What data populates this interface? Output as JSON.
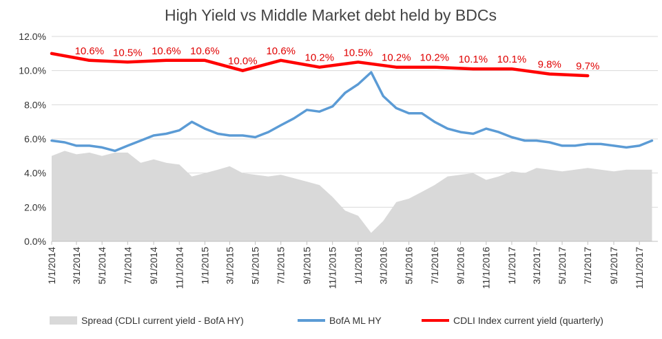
{
  "chart_data": {
    "type": "line",
    "title": "High Yield  vs  Middle Market debt held by BDCs",
    "ylim": [
      0,
      12
    ],
    "yticks": [
      "0.0%",
      "2.0%",
      "4.0%",
      "6.0%",
      "8.0%",
      "10.0%",
      "12.0%"
    ],
    "ytick_values": [
      0,
      2,
      4,
      6,
      8,
      10,
      12
    ],
    "xlim": [
      "2014-01-01",
      "2017-12-15"
    ],
    "xticks": [
      "1/1/2014",
      "3/1/2014",
      "5/1/2014",
      "7/1/2014",
      "9/1/2014",
      "11/1/2014",
      "1/1/2015",
      "3/1/2015",
      "5/1/2015",
      "7/1/2015",
      "9/1/2015",
      "11/1/2015",
      "1/1/2016",
      "3/1/2016",
      "5/1/2016",
      "7/1/2016",
      "9/1/2016",
      "11/1/2016",
      "1/1/2017",
      "3/1/2017",
      "5/1/2017",
      "7/1/2017",
      "9/1/2017",
      "11/1/2017"
    ],
    "grid": "horizontal",
    "legend_position": "bottom",
    "series": [
      {
        "name": "Spread (CDLI current yield - BofA HY)",
        "kind": "area",
        "color": "#d9d9d9",
        "x": [
          "2014-01-01",
          "2014-02-01",
          "2014-03-01",
          "2014-04-01",
          "2014-05-01",
          "2014-06-01",
          "2014-07-01",
          "2014-08-01",
          "2014-09-01",
          "2014-10-01",
          "2014-11-01",
          "2014-12-01",
          "2015-01-01",
          "2015-02-01",
          "2015-03-01",
          "2015-04-01",
          "2015-05-01",
          "2015-06-01",
          "2015-07-01",
          "2015-08-01",
          "2015-09-01",
          "2015-10-01",
          "2015-11-01",
          "2015-12-01",
          "2016-01-01",
          "2016-02-01",
          "2016-03-01",
          "2016-04-01",
          "2016-05-01",
          "2016-06-01",
          "2016-07-01",
          "2016-08-01",
          "2016-09-01",
          "2016-10-01",
          "2016-11-01",
          "2016-12-01",
          "2017-01-01",
          "2017-02-01",
          "2017-03-01",
          "2017-04-01",
          "2017-05-01",
          "2017-06-01",
          "2017-07-01",
          "2017-08-01",
          "2017-09-01",
          "2017-10-01",
          "2017-11-01",
          "2017-12-01"
        ],
        "values": [
          5.0,
          5.3,
          5.1,
          5.2,
          5.0,
          5.2,
          5.2,
          4.6,
          4.8,
          4.6,
          4.5,
          3.8,
          4.0,
          4.2,
          4.4,
          4.0,
          3.9,
          3.8,
          3.9,
          3.7,
          3.5,
          3.3,
          2.6,
          1.8,
          1.5,
          0.5,
          1.2,
          2.3,
          2.5,
          2.9,
          3.3,
          3.8,
          3.9,
          4.0,
          3.6,
          3.8,
          4.1,
          4.0,
          4.3,
          4.2,
          4.1,
          4.2,
          4.3,
          4.2,
          4.1,
          4.2,
          4.2,
          4.2
        ]
      },
      {
        "name": "BofA ML HY",
        "kind": "line",
        "color": "#5b9bd5",
        "x": [
          "2014-01-01",
          "2014-02-01",
          "2014-03-01",
          "2014-04-01",
          "2014-05-01",
          "2014-06-01",
          "2014-07-01",
          "2014-08-01",
          "2014-09-01",
          "2014-10-01",
          "2014-11-01",
          "2014-12-01",
          "2015-01-01",
          "2015-02-01",
          "2015-03-01",
          "2015-04-01",
          "2015-05-01",
          "2015-06-01",
          "2015-07-01",
          "2015-08-01",
          "2015-09-01",
          "2015-10-01",
          "2015-11-01",
          "2015-12-01",
          "2016-01-01",
          "2016-02-01",
          "2016-03-01",
          "2016-04-01",
          "2016-05-01",
          "2016-06-01",
          "2016-07-01",
          "2016-08-01",
          "2016-09-01",
          "2016-10-01",
          "2016-11-01",
          "2016-12-01",
          "2017-01-01",
          "2017-02-01",
          "2017-03-01",
          "2017-04-01",
          "2017-05-01",
          "2017-06-01",
          "2017-07-01",
          "2017-08-01",
          "2017-09-01",
          "2017-10-01",
          "2017-11-01",
          "2017-12-01"
        ],
        "values": [
          5.9,
          5.8,
          5.6,
          5.6,
          5.5,
          5.3,
          5.6,
          5.9,
          6.2,
          6.3,
          6.5,
          7.0,
          6.6,
          6.3,
          6.2,
          6.2,
          6.1,
          6.4,
          6.8,
          7.2,
          7.7,
          7.6,
          7.9,
          8.7,
          9.2,
          9.9,
          8.5,
          7.8,
          7.5,
          7.5,
          7.0,
          6.6,
          6.4,
          6.3,
          6.6,
          6.4,
          6.1,
          5.9,
          5.9,
          5.8,
          5.6,
          5.6,
          5.7,
          5.7,
          5.6,
          5.5,
          5.6,
          5.9
        ]
      },
      {
        "name": "CDLI Index current yield (quarterly)",
        "kind": "line",
        "color": "#ff0000",
        "x": [
          "2014-01-01",
          "2014-04-01",
          "2014-07-01",
          "2014-10-01",
          "2015-01-01",
          "2015-04-01",
          "2015-07-01",
          "2015-10-01",
          "2016-01-01",
          "2016-04-01",
          "2016-07-01",
          "2016-10-01",
          "2017-01-01",
          "2017-04-01",
          "2017-07-01"
        ],
        "values": [
          11.0,
          10.6,
          10.5,
          10.6,
          10.6,
          10.0,
          10.6,
          10.2,
          10.5,
          10.2,
          10.2,
          10.1,
          10.1,
          9.8,
          9.7
        ],
        "labels": [
          "",
          "10.6%",
          "10.5%",
          "10.6%",
          "10.6%",
          "10.0%",
          "10.6%",
          "10.2%",
          "10.5%",
          "10.2%",
          "10.2%",
          "10.1%",
          "10.1%",
          "9.8%",
          "9.7%"
        ]
      }
    ]
  }
}
